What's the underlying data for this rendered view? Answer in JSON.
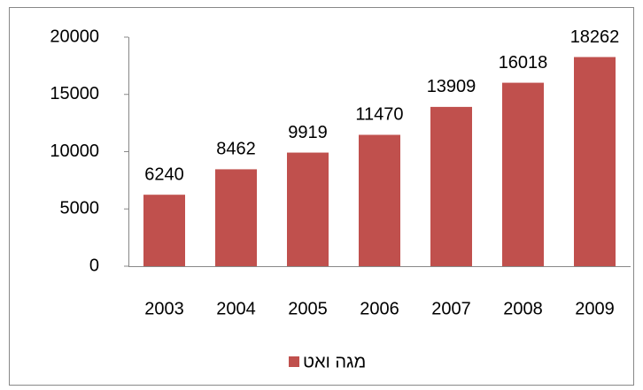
{
  "chart_data": {
    "type": "bar",
    "categories": [
      "2003",
      "2004",
      "2005",
      "2006",
      "2007",
      "2008",
      "2009"
    ],
    "series": [
      {
        "name": "מגה ואט",
        "color": "#c0504d",
        "values": [
          6240,
          8462,
          9919,
          11470,
          13909,
          16018,
          18262
        ]
      }
    ],
    "ylim": [
      0,
      20000
    ],
    "yticks": [
      0,
      5000,
      10000,
      15000,
      20000
    ],
    "grid": false,
    "legend": "bottom"
  }
}
